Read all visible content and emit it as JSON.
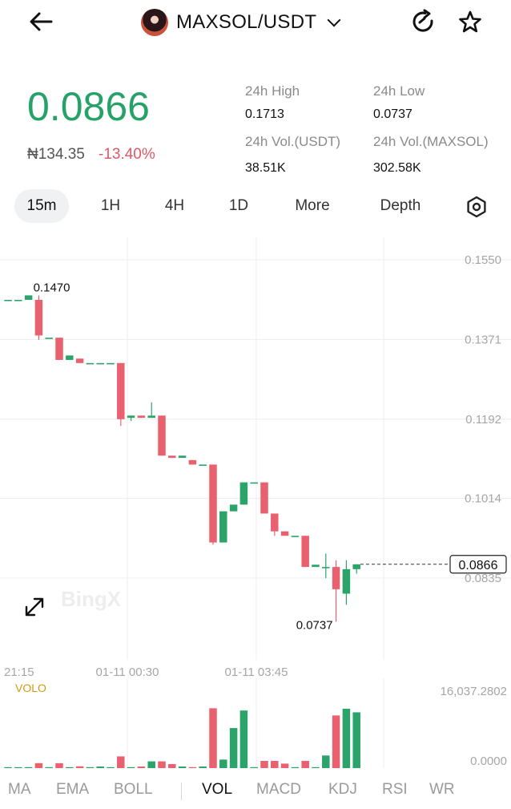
{
  "header": {
    "pair": "MAXSOL/USDT"
  },
  "ticker": {
    "price": "0.0866",
    "fiat": "₦134.35",
    "change": "-13.40%",
    "stats": [
      {
        "label": "24h High",
        "value": "0.1713"
      },
      {
        "label": "24h Low",
        "value": "0.0737"
      },
      {
        "label": "24h Vol.(USDT)",
        "value": "38.51K"
      },
      {
        "label": "24h Vol.(MAXSOL)",
        "value": "302.58K"
      }
    ]
  },
  "intervals": [
    "15m",
    "1H",
    "4H",
    "1D",
    "More",
    "Depth"
  ],
  "selected_interval": "15m",
  "chart": {
    "y_ticks": [
      "0.1550",
      "0.1371",
      "0.1192",
      "0.1014",
      "0.0835"
    ],
    "x_ticks": [
      "21:15",
      "01-11 00:30",
      "01-11 03:45"
    ],
    "max_label": "0.1470",
    "min_label": "0.0737",
    "current_price": "0.0866",
    "watermark": "BingX",
    "vol_label": "VOLO",
    "vol_ticks": [
      "16,037.2802",
      "0.0000"
    ]
  },
  "indicators": [
    "MA",
    "EMA",
    "BOLL",
    "VOL",
    "MACD",
    "KDJ",
    "RSI",
    "WR"
  ],
  "selected_indicator": "VOL",
  "chart_data": {
    "type": "candlestick",
    "ylim": [
      0.07,
      0.158
    ],
    "candles": [
      {
        "o": 0.146,
        "c": 0.146,
        "h": 0.146,
        "l": 0.146
      },
      {
        "o": 0.146,
        "c": 0.146,
        "h": 0.146,
        "l": 0.146
      },
      {
        "o": 0.146,
        "c": 0.147,
        "h": 0.147,
        "l": 0.146
      },
      {
        "o": 0.146,
        "c": 0.138,
        "h": 0.147,
        "l": 0.137
      },
      {
        "o": 0.1375,
        "c": 0.1375,
        "h": 0.1375,
        "l": 0.1375
      },
      {
        "o": 0.1375,
        "c": 0.1325,
        "h": 0.1375,
        "l": 0.1325
      },
      {
        "o": 0.1325,
        "c": 0.1335,
        "h": 0.1335,
        "l": 0.1325
      },
      {
        "o": 0.1328,
        "c": 0.1318,
        "h": 0.1328,
        "l": 0.1318
      },
      {
        "o": 0.1318,
        "c": 0.1318,
        "h": 0.1318,
        "l": 0.1318
      },
      {
        "o": 0.1318,
        "c": 0.1318,
        "h": 0.1318,
        "l": 0.1318
      },
      {
        "o": 0.1318,
        "c": 0.1318,
        "h": 0.1318,
        "l": 0.1318
      },
      {
        "o": 0.1318,
        "c": 0.1192,
        "h": 0.1318,
        "l": 0.1177
      },
      {
        "o": 0.1195,
        "c": 0.12,
        "h": 0.12,
        "l": 0.1188
      },
      {
        "o": 0.12,
        "c": 0.1195,
        "h": 0.12,
        "l": 0.1195
      },
      {
        "o": 0.1195,
        "c": 0.12,
        "h": 0.123,
        "l": 0.1195
      },
      {
        "o": 0.12,
        "c": 0.111,
        "h": 0.12,
        "l": 0.111
      },
      {
        "o": 0.111,
        "c": 0.1105,
        "h": 0.111,
        "l": 0.1105
      },
      {
        "o": 0.1105,
        "c": 0.111,
        "h": 0.111,
        "l": 0.1105
      },
      {
        "o": 0.11,
        "c": 0.109,
        "h": 0.11,
        "l": 0.109
      },
      {
        "o": 0.109,
        "c": 0.109,
        "h": 0.109,
        "l": 0.109
      },
      {
        "o": 0.109,
        "c": 0.0915,
        "h": 0.109,
        "l": 0.091
      },
      {
        "o": 0.0915,
        "c": 0.0985,
        "h": 0.0985,
        "l": 0.0915
      },
      {
        "o": 0.0985,
        "c": 0.1,
        "h": 0.1,
        "l": 0.0985
      },
      {
        "o": 0.1,
        "c": 0.105,
        "h": 0.105,
        "l": 0.1
      },
      {
        "o": 0.105,
        "c": 0.105,
        "h": 0.105,
        "l": 0.105
      },
      {
        "o": 0.105,
        "c": 0.098,
        "h": 0.105,
        "l": 0.098
      },
      {
        "o": 0.098,
        "c": 0.094,
        "h": 0.098,
        "l": 0.093
      },
      {
        "o": 0.094,
        "c": 0.093,
        "h": 0.094,
        "l": 0.093
      },
      {
        "o": 0.093,
        "c": 0.093,
        "h": 0.093,
        "l": 0.093
      },
      {
        "o": 0.093,
        "c": 0.086,
        "h": 0.093,
        "l": 0.086
      },
      {
        "o": 0.086,
        "c": 0.0865,
        "h": 0.0865,
        "l": 0.086
      },
      {
        "o": 0.086,
        "c": 0.086,
        "h": 0.089,
        "l": 0.0835
      },
      {
        "o": 0.086,
        "c": 0.081,
        "h": 0.0875,
        "l": 0.0737
      },
      {
        "o": 0.08,
        "c": 0.0855,
        "h": 0.0875,
        "l": 0.0775
      },
      {
        "o": 0.0855,
        "c": 0.0866,
        "h": 0.0866,
        "l": 0.0845
      }
    ],
    "volumes": [
      0,
      0,
      0,
      1100,
      0,
      1100,
      0,
      400,
      0,
      200,
      0,
      2600,
      0,
      300,
      1500,
      1500,
      900,
      200,
      0,
      300,
      13300,
      1900,
      8900,
      12800,
      0,
      1600,
      1600,
      1000,
      0,
      1600,
      0,
      2800,
      11700,
      13200,
      12400
    ]
  }
}
